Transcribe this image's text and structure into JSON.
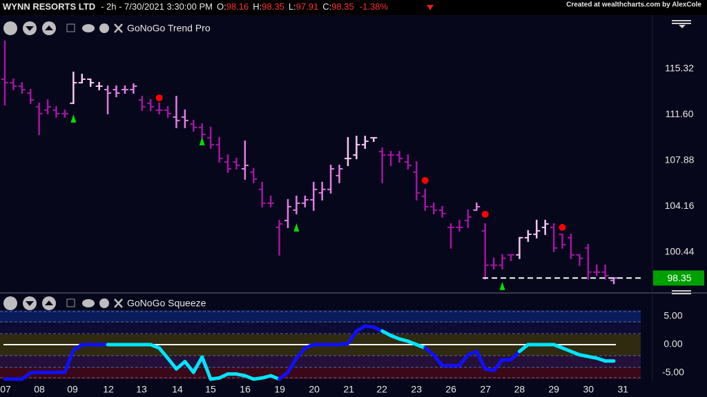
{
  "header": {
    "symbol": "WYNN RESORTS LTD",
    "interval": "- 2h - 7/30/2021 3:30:00 PM",
    "quote": [
      {
        "label": "O:",
        "value": "98.16"
      },
      {
        "label": "H:",
        "value": "98.35"
      },
      {
        "label": "L:",
        "value": "97.91"
      },
      {
        "label": "C:",
        "value": "98.35"
      }
    ],
    "change": "-1.38%",
    "credit": "Created at wealthcharts.com by AlexCole"
  },
  "chart_data": [
    {
      "type": "ohlc",
      "title": "GoNoGo Trend Pro",
      "x": [
        0,
        1,
        2,
        3,
        4,
        5,
        6,
        7,
        8,
        9,
        10,
        11,
        12,
        13,
        14,
        15,
        16,
        17,
        18,
        19,
        20,
        21,
        22,
        23,
        24,
        25,
        26,
        27,
        28,
        29,
        30,
        31,
        32,
        33,
        34,
        35,
        36,
        37,
        38,
        39,
        40,
        41,
        42,
        43,
        44,
        45,
        46,
        47,
        48,
        49,
        50,
        51,
        52,
        53,
        54,
        55,
        56,
        57,
        58,
        59,
        60,
        61,
        62,
        63,
        64,
        65,
        66,
        67,
        68,
        69,
        70,
        71
      ],
      "open": [
        114.48,
        114.2,
        113.92,
        113.36,
        112.25,
        111.97,
        111.97,
        111.69,
        112.53,
        114.2,
        114.48,
        113.92,
        113.64,
        113.64,
        113.64,
        113.64,
        112.8,
        112.53,
        111.97,
        111.97,
        111.41,
        111.41,
        110.85,
        110.57,
        109.73,
        109.17,
        107.77,
        107.77,
        107.21,
        106.94,
        105.54,
        104.42,
        102.46,
        103.02,
        103.86,
        104.42,
        104.7,
        105.26,
        105.54,
        106.66,
        108.05,
        108.33,
        109.17,
        109.73,
        108.61,
        108.33,
        108.33,
        107.77,
        106.94,
        104.98,
        104.14,
        103.86,
        102.46,
        102.46,
        103.02,
        103.86,
        102.18,
        99.39,
        99.39,
        100.23,
        100.23,
        101.62,
        101.9,
        102.46,
        102.46,
        101.9,
        101.62,
        100.23,
        100.79,
        98.83,
        98.83,
        98.16
      ],
      "high": [
        117.56,
        114.48,
        114.2,
        113.64,
        112.53,
        112.8,
        112.25,
        111.97,
        115.04,
        114.87,
        114.48,
        114.2,
        113.92,
        113.92,
        113.92,
        114.09,
        113.08,
        112.8,
        112.53,
        112.25,
        113.08,
        111.97,
        111.13,
        110.85,
        110.57,
        109.73,
        108.33,
        108.05,
        109.45,
        107.21,
        106.1,
        104.98,
        103.02,
        104.7,
        104.98,
        104.98,
        106.1,
        106.1,
        107.49,
        107.49,
        109.73,
        109.84,
        109.84,
        109.73,
        108.89,
        108.61,
        108.61,
        108.33,
        107.77,
        105.54,
        104.42,
        104.14,
        102.74,
        103.02,
        103.86,
        104.42,
        102.74,
        99.95,
        100.23,
        100.23,
        101.62,
        102.18,
        103.02,
        103.02,
        102.74,
        101.9,
        101.9,
        100.23,
        101.06,
        99.39,
        99.39,
        98.35
      ],
      "low": [
        112.41,
        113.64,
        113.36,
        112.53,
        110.01,
        111.69,
        111.41,
        111.41,
        112.53,
        114.2,
        113.92,
        113.64,
        111.69,
        113.08,
        113.36,
        113.36,
        111.97,
        111.97,
        111.69,
        111.41,
        110.57,
        110.57,
        110.29,
        109.73,
        108.89,
        107.77,
        106.94,
        107.21,
        106.38,
        106.1,
        104.14,
        104.14,
        100.23,
        102.46,
        103.58,
        104.14,
        103.86,
        104.7,
        105.26,
        106.1,
        107.49,
        108.05,
        108.89,
        109.45,
        106.1,
        107.49,
        107.77,
        107.21,
        104.7,
        103.86,
        103.58,
        103.3,
        100.79,
        102.18,
        102.46,
        103.86,
        98.27,
        99.11,
        99.11,
        99.78,
        99.95,
        101.34,
        101.62,
        101.9,
        100.51,
        100.79,
        99.95,
        99.39,
        98.27,
        98.55,
        98.27,
        97.91
      ],
      "close": [
        114.2,
        113.92,
        113.64,
        112.8,
        111.69,
        112.25,
        111.69,
        111.69,
        114.2,
        114.48,
        114.2,
        113.92,
        113.36,
        113.36,
        113.64,
        113.92,
        112.25,
        112.25,
        111.97,
        111.69,
        111.13,
        111.13,
        110.57,
        110.01,
        109.17,
        108.05,
        107.21,
        107.49,
        107.49,
        106.38,
        104.42,
        104.42,
        102.74,
        104.14,
        104.42,
        104.7,
        105.54,
        105.54,
        107.21,
        107.21,
        108.05,
        109.17,
        109.45,
        109.73,
        108.33,
        108.33,
        108.05,
        107.49,
        105.26,
        104.14,
        103.86,
        103.58,
        102.46,
        102.46,
        103.3,
        104.14,
        99.39,
        99.39,
        99.95,
        100.23,
        101.62,
        101.9,
        102.18,
        102.74,
        100.79,
        101.06,
        100.23,
        99.95,
        98.83,
        98.83,
        98.55,
        98.35
      ],
      "colors": [
        "#a3169f",
        "#a3169f",
        "#a3169f",
        "#a3169f",
        "#a3169f",
        "#a3169f",
        "#a3169f",
        "#a3169f",
        "#f5c8f0",
        "#f5c8f0",
        "#f5c8f0",
        "#f5c8f0",
        "#e27ee0",
        "#e27ee0",
        "#e27ee0",
        "#e27ee0",
        "#a3169f",
        "#a3169f",
        "#a3169f",
        "#a3169f",
        "#e27ee0",
        "#e27ee0",
        "#a3169f",
        "#a3169f",
        "#a3169f",
        "#a3169f",
        "#a3169f",
        "#a3169f",
        "#e27ee0",
        "#a3169f",
        "#a3169f",
        "#a3169f",
        "#a3169f",
        "#e27ee0",
        "#e27ee0",
        "#e27ee0",
        "#e27ee0",
        "#e27ee0",
        "#e27ee0",
        "#e27ee0",
        "#f5c8f0",
        "#f5c8f0",
        "#f5c8f0",
        "#f5c8f0",
        "#a3169f",
        "#a3169f",
        "#a3169f",
        "#a3169f",
        "#a3169f",
        "#a3169f",
        "#a3169f",
        "#a3169f",
        "#a3169f",
        "#a3169f",
        "#a3169f",
        "#e27ee0",
        "#a3169f",
        "#a3169f",
        "#a3169f",
        "#a3169f",
        "#f5c8f0",
        "#f5c8f0",
        "#f5c8f0",
        "#f5c8f0",
        "#a3169f",
        "#a3169f",
        "#a3169f",
        "#a3169f",
        "#a3169f",
        "#a3169f",
        "#a3169f",
        "#e27ee0"
      ],
      "go_signals": {
        "x": [
          8,
          23,
          34,
          58
        ],
        "y": [
          111.3,
          109.45,
          102.46,
          97.71
        ],
        "color": "#00e000"
      },
      "nogo_signals": {
        "x": [
          18,
          49,
          56,
          65
        ],
        "y": [
          112.97,
          106.27,
          103.52,
          102.46
        ],
        "color": "#ff0000"
      },
      "last_price": 98.35,
      "last_price_color": "#00a000",
      "xlim": [
        -0.56,
        75.5
      ],
      "ylim": [
        97.42,
        119.68
      ],
      "yticks": [
        115.32,
        {
          "value": 111.6,
          "label": "111.60"
        },
        107.88,
        104.16,
        100.44
      ]
    },
    {
      "type": "line",
      "title": "GoNoGo Squeeze",
      "x": [
        0,
        1,
        2,
        3,
        4,
        5,
        6,
        7,
        8,
        9,
        10,
        11,
        12,
        13,
        14,
        15,
        16,
        17,
        18,
        19,
        20,
        21,
        22,
        23,
        24,
        25,
        26,
        27,
        28,
        29,
        30,
        31,
        32,
        33,
        34,
        35,
        36,
        37,
        38,
        39,
        40,
        41,
        42,
        43,
        44,
        45,
        46,
        47,
        48,
        49,
        50,
        51,
        52,
        53,
        54,
        55,
        56,
        57,
        58,
        59,
        60,
        61,
        62,
        63,
        64,
        65,
        66,
        67,
        68,
        69,
        70,
        71
      ],
      "values": [
        -6.1,
        -6.1,
        -6.1,
        -5.0,
        -4.9,
        -4.9,
        -4.9,
        -4.9,
        -1.0,
        0,
        0,
        0,
        0,
        0,
        0,
        0,
        0,
        0,
        -0.6,
        -2.4,
        -4.3,
        -3.0,
        -4.9,
        -2.2,
        -6.1,
        -5.9,
        -5.2,
        -5.2,
        -5.5,
        -6.1,
        -5.9,
        -5.5,
        -6.1,
        -4.9,
        -2.4,
        -0.6,
        0,
        0,
        0,
        0,
        0.2,
        2.4,
        3.3,
        3.1,
        2.4,
        1.6,
        1.0,
        0.6,
        0,
        -0.6,
        -1.8,
        -3.7,
        -3.7,
        -3.7,
        -1.8,
        -1.2,
        -4.3,
        -4.6,
        -2.7,
        -2.7,
        -1.2,
        0,
        0,
        0,
        0,
        -0.6,
        -1.2,
        -1.8,
        -2.1,
        -2.4,
        -2.9,
        -2.9
      ],
      "point_colors": [
        "#1010ff",
        "#1010ff",
        "#1010ff",
        "#1010ff",
        "#1010ff",
        "#1010ff",
        "#1010ff",
        "#1010ff",
        "#1010ff",
        "#1010ff",
        "#1010ff",
        "#1010ff",
        "#1010ff",
        "#00e5ff",
        "#00e5ff",
        "#00e5ff",
        "#00e5ff",
        "#00e5ff",
        "#00e5ff",
        "#00e5ff",
        "#00e5ff",
        "#00e5ff",
        "#00e5ff",
        "#00e5ff",
        "#00e5ff",
        "#00e5ff",
        "#00e5ff",
        "#00e5ff",
        "#00e5ff",
        "#00e5ff",
        "#00e5ff",
        "#00e5ff",
        "#00e5ff",
        "#1010ff",
        "#1010ff",
        "#1010ff",
        "#1010ff",
        "#1010ff",
        "#1010ff",
        "#1010ff",
        "#1010ff",
        "#1010ff",
        "#1010ff",
        "#1010ff",
        "#1010ff",
        "#00e5ff",
        "#00e5ff",
        "#00e5ff",
        "#00e5ff",
        "#00e5ff",
        "#1010ff",
        "#1010ff",
        "#1010ff",
        "#1010ff",
        "#1010ff",
        "#1010ff",
        "#1010ff",
        "#1010ff",
        "#1010ff",
        "#1010ff",
        "#1010ff",
        "#00e5ff",
        "#00e5ff",
        "#00e5ff",
        "#00e5ff",
        "#00e5ff",
        "#00e5ff",
        "#00e5ff",
        "#00e5ff",
        "#00e5ff",
        "#00e5ff",
        "#00e5ff"
      ],
      "xlim": [
        -0.56,
        75.5
      ],
      "ylim": [
        -6.34,
        6.34
      ],
      "yticks": [
        {
          "value": 5,
          "label": "5.00"
        },
        {
          "value": 0,
          "label": "0.00"
        },
        {
          "value": -5,
          "label": "-5.00"
        }
      ],
      "xticks": [
        {
          "value": -0.56,
          "label": "07"
        },
        {
          "value": 4.03,
          "label": "08"
        },
        {
          "value": 7.89,
          "label": "09"
        },
        {
          "value": 12.08,
          "label": "12"
        },
        {
          "value": 15.94,
          "label": "13"
        },
        {
          "value": 20.13,
          "label": "14"
        },
        {
          "value": 23.99,
          "label": "15"
        },
        {
          "value": 28.02,
          "label": "16"
        },
        {
          "value": 32.05,
          "label": "19"
        },
        {
          "value": 36.07,
          "label": "20"
        },
        {
          "value": 40.1,
          "label": "21"
        },
        {
          "value": 43.96,
          "label": "22"
        },
        {
          "value": 47.99,
          "label": "23"
        },
        {
          "value": 52.01,
          "label": "26"
        },
        {
          "value": 56.04,
          "label": "27"
        },
        {
          "value": 60.0,
          "label": "28"
        },
        {
          "value": 64.0,
          "label": "29"
        },
        {
          "value": 68.04,
          "label": "30"
        },
        {
          "value": 72.06,
          "label": "31"
        }
      ]
    }
  ]
}
